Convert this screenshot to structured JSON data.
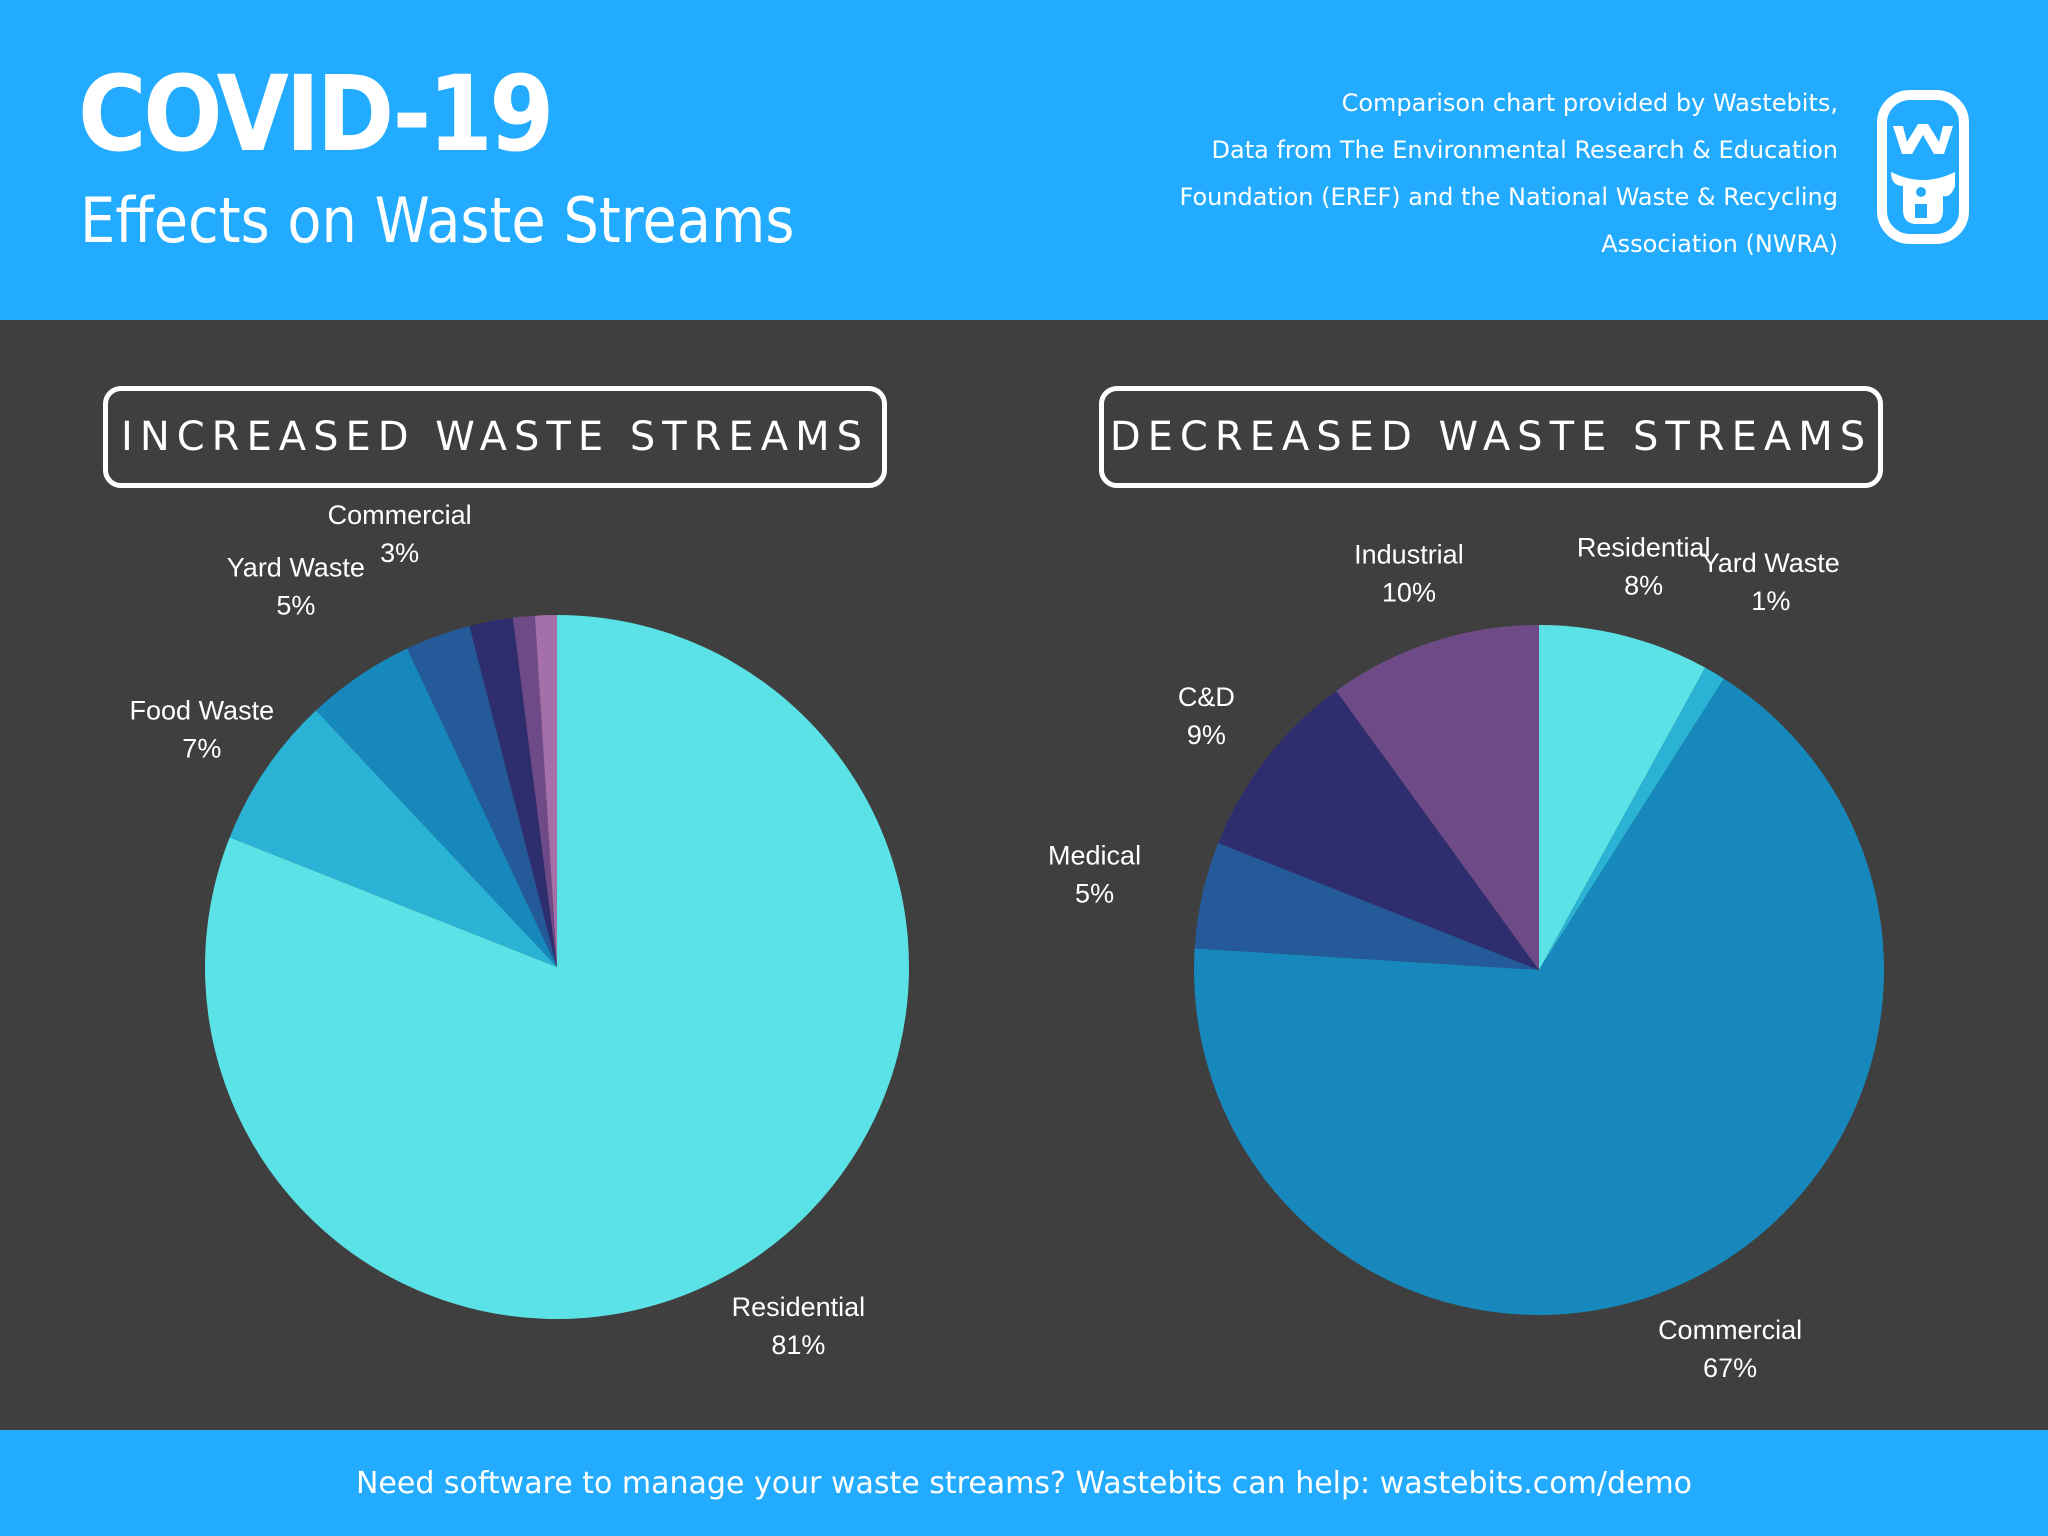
{
  "header": {
    "title": "COVID-19",
    "subtitle": "Effects on Waste Streams",
    "credit_lines": [
      "Comparison chart provided by Wastebits,",
      "Data from The Environmental Research & Education",
      "Foundation (EREF) and the National Waste & Recycling",
      "Association (NWRA)"
    ],
    "logo_icon": "wastebits-logo-icon",
    "color": "#23acff"
  },
  "chart_data": [
    {
      "type": "pie",
      "title": "INCREASED WASTE STREAMS",
      "slices": [
        {
          "label": "Residential",
          "value": 81,
          "display": "81%",
          "color": "#5be2e6"
        },
        {
          "label": "Food Waste",
          "value": 7,
          "display": "7%",
          "color": "#2ab3d5"
        },
        {
          "label": "Yard Waste",
          "value": 5,
          "display": "5%",
          "color": "#1788bb"
        },
        {
          "label": "Commercial",
          "value": 3,
          "display": "3%",
          "color": "#245a9a"
        },
        {
          "label": "",
          "value": 2,
          "display": "",
          "color": "#2e2d6e"
        },
        {
          "label": "",
          "value": 1,
          "display": "",
          "color": "#6e4a86"
        },
        {
          "label": "",
          "value": 1,
          "display": "",
          "color": "#a570a9"
        }
      ]
    },
    {
      "type": "pie",
      "title": "DECREASED WASTE STREAMS",
      "slices": [
        {
          "label": "Residential",
          "value": 8,
          "display": "8%",
          "color": "#5be2e6"
        },
        {
          "label": "Yard Waste",
          "value": 1,
          "display": "1%",
          "color": "#2ab3d5"
        },
        {
          "label": "Commercial",
          "value": 67,
          "display": "67%",
          "color": "#1788bb"
        },
        {
          "label": "Medical",
          "value": 5,
          "display": "5%",
          "color": "#245a9a"
        },
        {
          "label": "C&D",
          "value": 9,
          "display": "9%",
          "color": "#2e2d6e"
        },
        {
          "label": "Industrial",
          "value": 10,
          "display": "10%",
          "color": "#6e4a86"
        }
      ]
    }
  ],
  "footer": {
    "text": "Need software to manage your waste streams? Wastebits can help: wastebits.com/demo"
  }
}
